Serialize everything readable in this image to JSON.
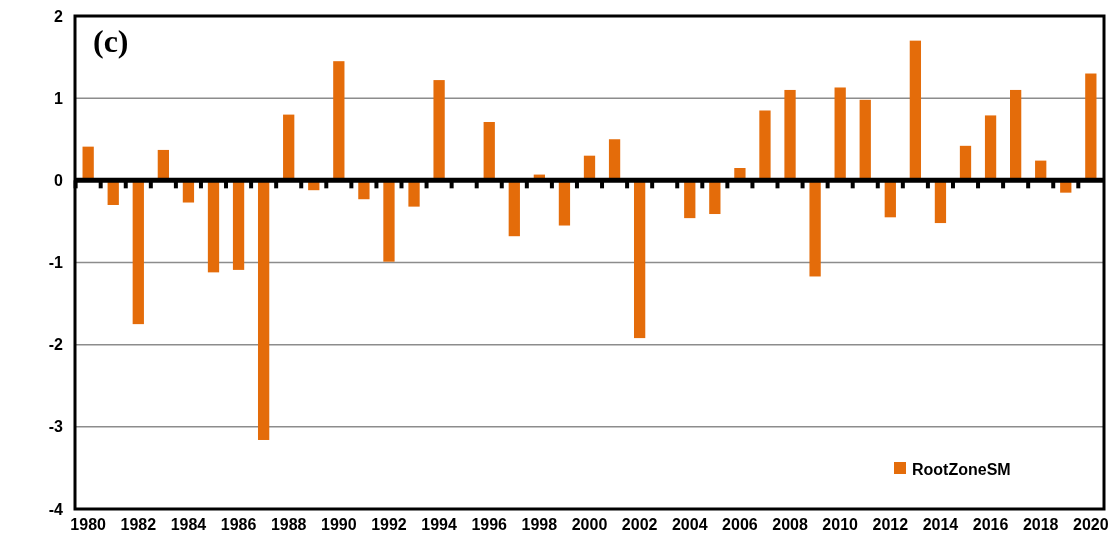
{
  "chart_data": {
    "type": "bar",
    "annotations": [
      "(c)"
    ],
    "categories": [
      "1980",
      null,
      "1982",
      null,
      "1984",
      null,
      "1986",
      null,
      "1988",
      null,
      "1990",
      null,
      "1992",
      null,
      "1994",
      null,
      "1996",
      null,
      "1998",
      null,
      "2000",
      null,
      "2002",
      null,
      "2004",
      null,
      "2006",
      null,
      "2008",
      null,
      "2010",
      null,
      "2012",
      null,
      "2014",
      null,
      "2016",
      null,
      "2018",
      null,
      "2020"
    ],
    "series": [
      {
        "name": "RootZoneSM",
        "color": "#e46c0a",
        "values": [
          0.41,
          -0.3,
          -1.75,
          0.37,
          -0.27,
          -1.12,
          -1.09,
          -3.16,
          0.8,
          -0.12,
          1.45,
          -0.23,
          -0.99,
          -0.32,
          1.22,
          0,
          0.71,
          -0.68,
          0.07,
          -0.55,
          0.3,
          0.5,
          -1.92,
          0,
          -0.46,
          -0.41,
          0.15,
          0.85,
          1.1,
          -1.17,
          1.13,
          0.98,
          -0.45,
          1.7,
          -0.52,
          0.42,
          0.79,
          1.1,
          0.24,
          -0.15,
          1.3
        ]
      }
    ],
    "ylim": [
      -4,
      2
    ],
    "yticks": [
      -4,
      -3,
      -2,
      -1,
      0,
      1,
      2
    ],
    "grid": "y",
    "legend": "bottom right"
  }
}
